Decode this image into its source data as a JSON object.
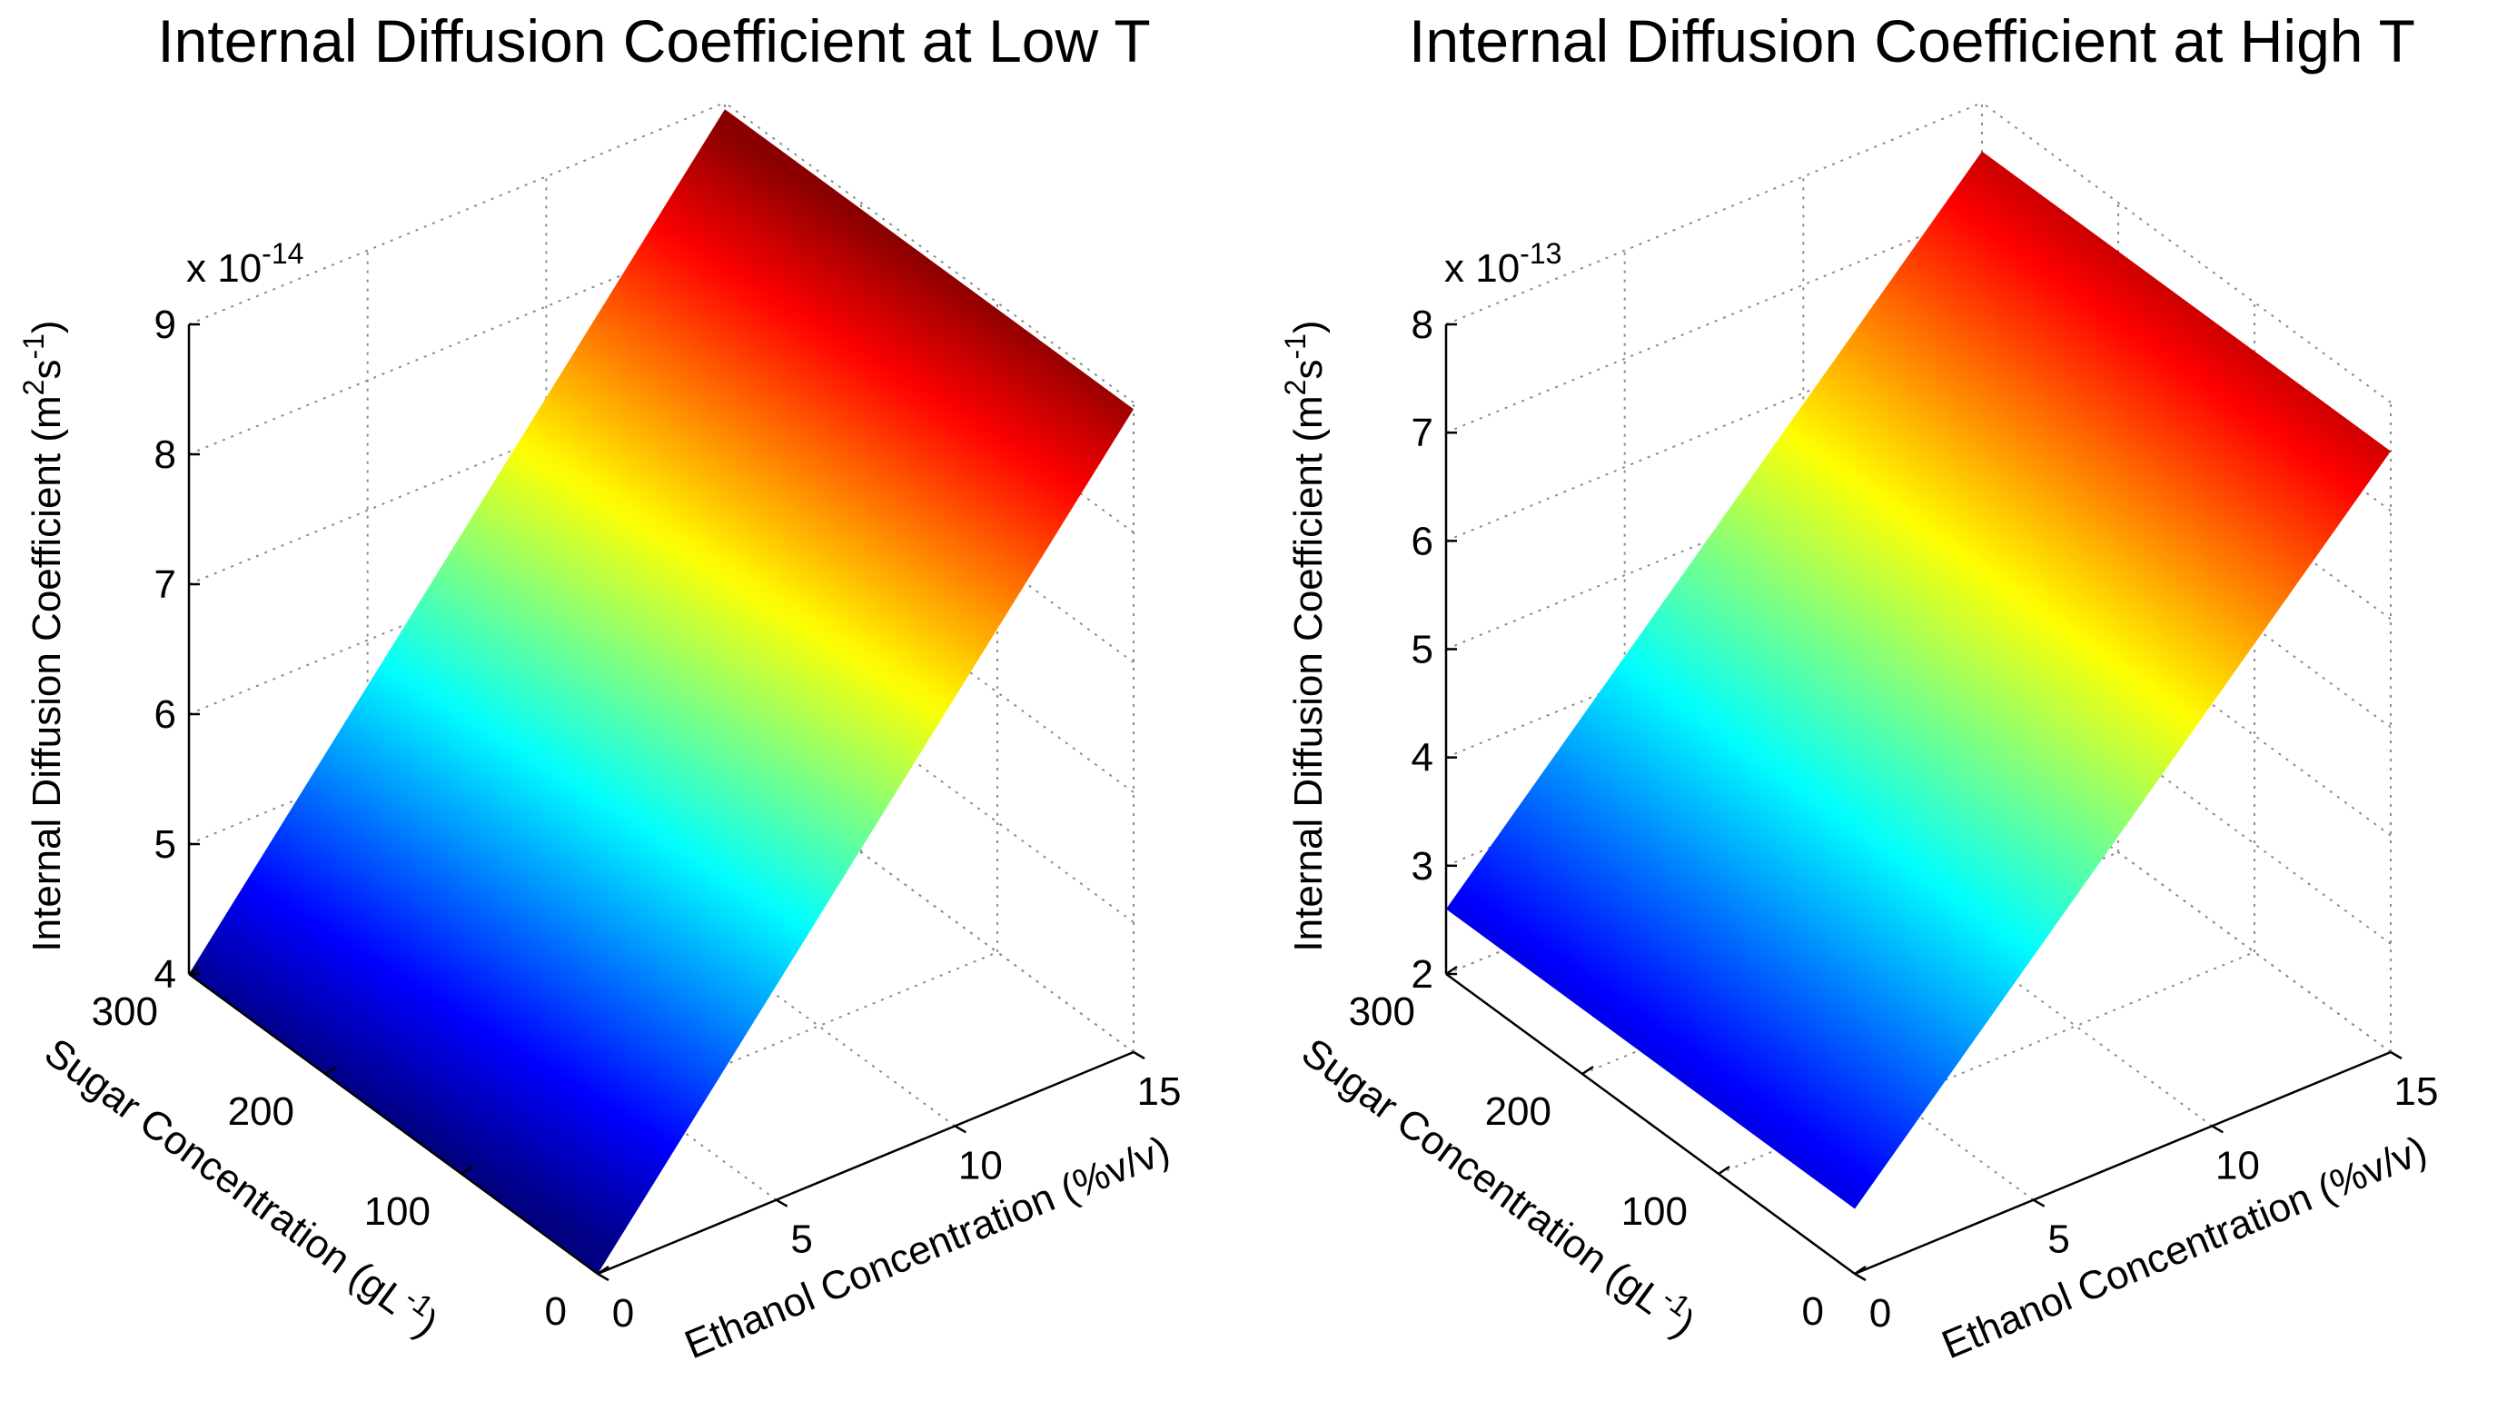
{
  "chart_data": [
    {
      "type": "surface",
      "title": "Internal Diffusion Coefficient at Low T",
      "zlabel": "Internal Diffusion Coefficient (m",
      "zlabel_unit": "2",
      "zlabel_mid": "s",
      "zlabel_exp": "-1",
      "zlabel_end": ")",
      "ylabel": "Sugar Concentration (gL",
      "ylabel_exp": "-1",
      "ylabel_end": ")",
      "xlabel": "Ethanol Concentration (%v/v)",
      "z_multiplier_base": "x 10",
      "z_multiplier_exp": "-14",
      "x_ticks": [
        "0",
        "5",
        "10",
        "15"
      ],
      "y_ticks": [
        "0",
        "100",
        "200",
        "300"
      ],
      "z_ticks": [
        "4",
        "5",
        "6",
        "7",
        "8",
        "9"
      ],
      "xlim": [
        0,
        15
      ],
      "ylim": [
        0,
        300
      ],
      "zlim": [
        4,
        9
      ],
      "surface": {
        "x": [
          0,
          15
        ],
        "y": [
          0,
          300
        ],
        "z": [
          [
            4.0,
            8.95
          ],
          [
            4.0,
            8.95
          ]
        ]
      },
      "colormap": "jet"
    },
    {
      "type": "surface",
      "title": "Internal Diffusion Coefficient at High T",
      "zlabel": "Internal Diffusion Coefficient (m",
      "zlabel_unit": "2",
      "zlabel_mid": "s",
      "zlabel_exp": "-1",
      "zlabel_end": ")",
      "ylabel": "Sugar Concentration (gL",
      "ylabel_exp": "-1",
      "ylabel_end": ")",
      "xlabel": "Ethanol Concentration (%v/v)",
      "z_multiplier_base": "x 10",
      "z_multiplier_exp": "-13",
      "x_ticks": [
        "0",
        "5",
        "10",
        "15"
      ],
      "y_ticks": [
        "0",
        "100",
        "200",
        "300"
      ],
      "z_ticks": [
        "2",
        "3",
        "4",
        "5",
        "6",
        "7",
        "8"
      ],
      "xlim": [
        0,
        15
      ],
      "ylim": [
        0,
        300
      ],
      "zlim": [
        2,
        8
      ],
      "surface": {
        "x": [
          0,
          15
        ],
        "y": [
          0,
          300
        ],
        "z": [
          [
            2.6,
            7.55
          ],
          [
            2.6,
            7.55
          ]
        ]
      },
      "colormap": "jet"
    }
  ]
}
